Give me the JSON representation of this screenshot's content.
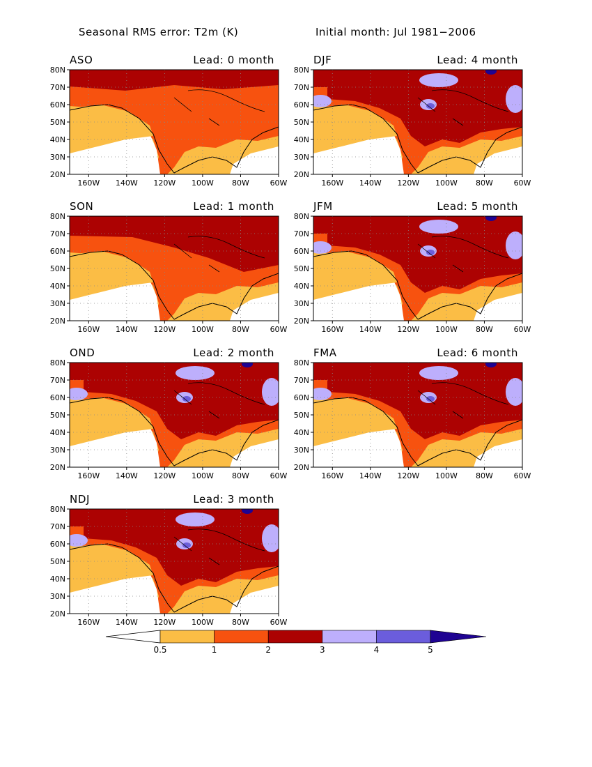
{
  "figure": {
    "title_left": "Seasonal RMS error: T2m (K)",
    "title_right": "Initial month: Jul 1981−2006"
  },
  "axes": {
    "lat_ticks": [
      "20N",
      "30N",
      "40N",
      "50N",
      "60N",
      "70N",
      "80N"
    ],
    "lat_values": [
      20,
      30,
      40,
      50,
      60,
      70,
      80
    ],
    "lon_ticks": [
      "160W",
      "140W",
      "120W",
      "100W",
      "80W",
      "60W"
    ],
    "lon_values": [
      -160,
      -140,
      -120,
      -100,
      -80,
      -60
    ],
    "lon_range": [
      -170,
      -60
    ],
    "lat_range": [
      20,
      80
    ],
    "grid": "dotted"
  },
  "panels": [
    {
      "season": "ASO",
      "lead": "Lead: 0 month"
    },
    {
      "season": "DJF",
      "lead": "Lead: 4 month"
    },
    {
      "season": "SON",
      "lead": "Lead: 1 month"
    },
    {
      "season": "JFM",
      "lead": "Lead: 5 month"
    },
    {
      "season": "OND",
      "lead": "Lead: 2 month"
    },
    {
      "season": "FMA",
      "lead": "Lead: 6 month"
    },
    {
      "season": "NDJ",
      "lead": "Lead: 3 month"
    }
  ],
  "colorbar": {
    "levels": [
      "0.5",
      "1",
      "2",
      "3",
      "4",
      "5"
    ],
    "colors": [
      "#ffffff",
      "#fbbd45",
      "#f7520f",
      "#ac0202",
      "#bdaffc",
      "#6b5ddc",
      "#1f0392"
    ]
  }
}
